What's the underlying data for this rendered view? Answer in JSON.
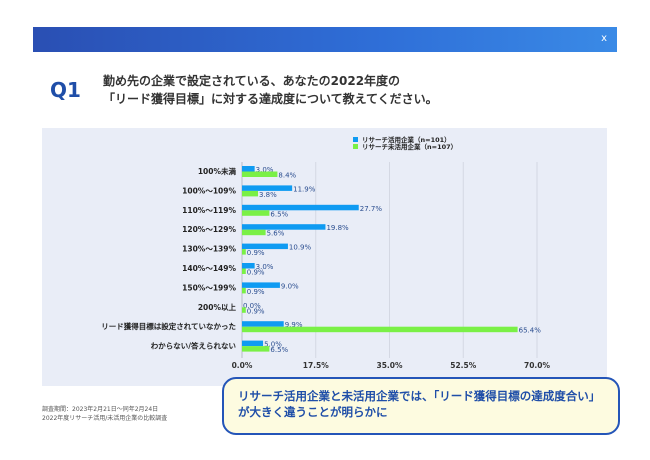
{
  "header": {
    "close_label": "x"
  },
  "question": {
    "number": "Q1",
    "line1": "勤め先の企業で設定されている、あなたの2022年度の",
    "line2": "「リード獲得目標」に対する達成度について教えてください。"
  },
  "chart_data": {
    "type": "bar",
    "orientation": "horizontal",
    "categories": [
      "100%未満",
      "100%〜109%",
      "110%〜119%",
      "120%〜129%",
      "130%〜139%",
      "140%〜149%",
      "150%〜199%",
      "200%以上",
      "リード獲得目標は設定されていなかった",
      "わからない/答えられない"
    ],
    "series": [
      {
        "name": "リサーチ活用企業（n=101）",
        "color": "#0f9bf2",
        "values": [
          3.0,
          11.9,
          27.7,
          19.8,
          10.9,
          3.0,
          9.0,
          0.0,
          9.9,
          5.0
        ]
      },
      {
        "name": "リサーチ未活用企業（n=107）",
        "color": "#7af046",
        "values": [
          8.4,
          3.8,
          6.5,
          5.6,
          0.9,
          0.9,
          0.9,
          0.9,
          65.4,
          6.5
        ]
      }
    ],
    "xlim": [
      0,
      70
    ],
    "xticks": [
      "0.0%",
      "17.5%",
      "35.0%",
      "52.5%",
      "70.0%"
    ],
    "grid": true,
    "legend": "top-right"
  },
  "footnote": {
    "line1": "調査期間：2023年2月21日〜同年2月24日",
    "line2": "2022年度リサーチ活用/未活用企業の比較調査"
  },
  "callout": {
    "line1": "リサーチ活用企業と未活用企業では、「リード獲得目標の達成度合い」",
    "line2": "が大きく違うことが明らかに"
  }
}
